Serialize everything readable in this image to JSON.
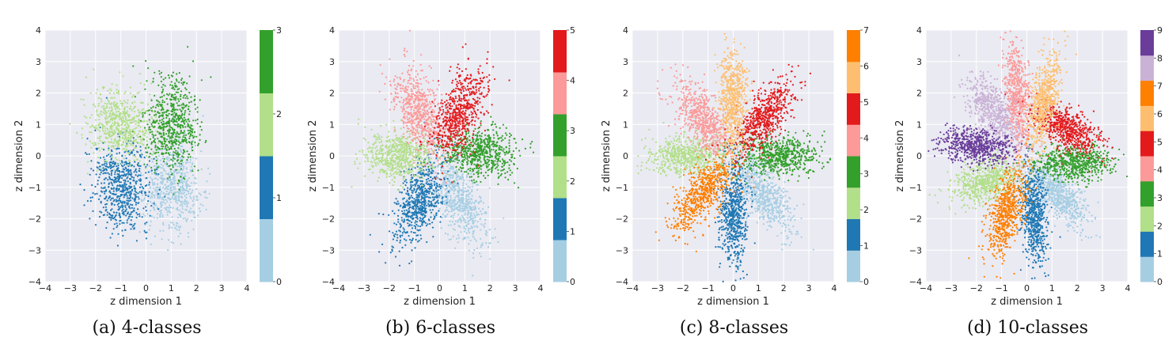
{
  "chart_data": [
    {
      "type": "scatter",
      "caption": "(a) 4-classes",
      "xlabel": "z dimension 1",
      "ylabel": "z dimension 2",
      "xlim": [
        -4,
        4
      ],
      "ylim": [
        -4,
        4
      ],
      "xticks": [
        "−4",
        "−3",
        "−2",
        "−1",
        "0",
        "1",
        "2",
        "3",
        "4"
      ],
      "yticks": [
        "−4",
        "−3",
        "−2",
        "−1",
        "0",
        "1",
        "2",
        "3",
        "4"
      ],
      "grid": true,
      "colorbar": {
        "labels": [
          "0",
          "1",
          "2",
          "3"
        ]
      },
      "series": [
        {
          "label": "0",
          "color": "#a6cee3",
          "center": [
            1.0,
            -1.0
          ],
          "spread": [
            0.55,
            0.7
          ],
          "angle_deg": 0
        },
        {
          "label": "1",
          "color": "#1f78b4",
          "center": [
            -1.0,
            -1.0
          ],
          "spread": [
            0.55,
            0.7
          ],
          "angle_deg": 0
        },
        {
          "label": "2",
          "color": "#b2df8a",
          "center": [
            -1.0,
            1.0
          ],
          "spread": [
            0.65,
            0.55
          ],
          "angle_deg": 0
        },
        {
          "label": "3",
          "color": "#33a02c",
          "center": [
            1.0,
            1.0
          ],
          "spread": [
            0.5,
            0.75
          ],
          "angle_deg": 0
        }
      ]
    },
    {
      "type": "scatter",
      "caption": "(b) 6-classes",
      "xlabel": "z dimension 1",
      "ylabel": "z dimension 2",
      "xlim": [
        -4,
        4
      ],
      "ylim": [
        -4,
        4
      ],
      "xticks": [
        "−4",
        "−3",
        "−2",
        "−1",
        "0",
        "1",
        "2",
        "3",
        "4"
      ],
      "yticks": [
        "−4",
        "−3",
        "−2",
        "−1",
        "0",
        "1",
        "2",
        "3",
        "4"
      ],
      "grid": true,
      "colorbar": {
        "labels": [
          "0",
          "1",
          "2",
          "3",
          "4",
          "5"
        ]
      },
      "series": [
        {
          "label": "0",
          "color": "#a6cee3",
          "center": [
            0.8,
            -1.4
          ],
          "spread": [
            0.4,
            0.75
          ],
          "angle_deg": 30
        },
        {
          "label": "1",
          "color": "#1f78b4",
          "center": [
            -0.8,
            -1.4
          ],
          "spread": [
            0.4,
            0.75
          ],
          "angle_deg": -30
        },
        {
          "label": "2",
          "color": "#b2df8a",
          "center": [
            -1.6,
            0.0
          ],
          "spread": [
            0.7,
            0.38
          ],
          "angle_deg": 0
        },
        {
          "label": "3",
          "color": "#33a02c",
          "center": [
            1.6,
            0.1
          ],
          "spread": [
            0.7,
            0.38
          ],
          "angle_deg": 0
        },
        {
          "label": "4",
          "color": "#fb9a99",
          "center": [
            -0.8,
            1.4
          ],
          "spread": [
            0.4,
            0.75
          ],
          "angle_deg": 30
        },
        {
          "label": "5",
          "color": "#e31a1c",
          "center": [
            0.8,
            1.4
          ],
          "spread": [
            0.4,
            0.75
          ],
          "angle_deg": -30
        }
      ]
    },
    {
      "type": "scatter",
      "caption": "(c) 8-classes",
      "xlabel": "z dimension 1",
      "ylabel": "z dimension 2",
      "xlim": [
        -4,
        4
      ],
      "ylim": [
        -4,
        4
      ],
      "xticks": [
        "−4",
        "−3",
        "−2",
        "−1",
        "0",
        "1",
        "2",
        "3",
        "4"
      ],
      "yticks": [
        "−4",
        "−3",
        "−2",
        "−1",
        "0",
        "1",
        "2",
        "3",
        "4"
      ],
      "grid": true,
      "colorbar": {
        "labels": [
          "0",
          "1",
          "2",
          "3",
          "4",
          "5",
          "6",
          "7"
        ]
      },
      "series": [
        {
          "label": "0",
          "color": "#a6cee3",
          "center": [
            1.2,
            -1.2
          ],
          "spread": [
            0.35,
            0.75
          ],
          "angle_deg": 45
        },
        {
          "label": "1",
          "color": "#1f78b4",
          "center": [
            0.0,
            -1.8
          ],
          "spread": [
            0.28,
            0.8
          ],
          "angle_deg": 0
        },
        {
          "label": "2",
          "color": "#b2df8a",
          "center": [
            -1.8,
            0.0
          ],
          "spread": [
            0.8,
            0.3
          ],
          "angle_deg": 0
        },
        {
          "label": "3",
          "color": "#33a02c",
          "center": [
            1.8,
            0.0
          ],
          "spread": [
            0.8,
            0.3
          ],
          "angle_deg": 0
        },
        {
          "label": "4",
          "color": "#fb9a99",
          "center": [
            -1.2,
            1.2
          ],
          "spread": [
            0.35,
            0.75
          ],
          "angle_deg": 45
        },
        {
          "label": "5",
          "color": "#e31a1c",
          "center": [
            1.2,
            1.2
          ],
          "spread": [
            0.35,
            0.75
          ],
          "angle_deg": -45
        },
        {
          "label": "6",
          "color": "#fdbf6f",
          "center": [
            0.0,
            1.8
          ],
          "spread": [
            0.28,
            0.8
          ],
          "angle_deg": 0
        },
        {
          "label": "7",
          "color": "#ff7f00",
          "center": [
            -1.2,
            -1.2
          ],
          "spread": [
            0.35,
            0.75
          ],
          "angle_deg": -45
        }
      ]
    },
    {
      "type": "scatter",
      "caption": "(d) 10-classes",
      "xlabel": "z dimension 1",
      "ylabel": "z dimension 2",
      "xlim": [
        -4,
        4
      ],
      "ylim": [
        -4,
        4
      ],
      "xticks": [
        "−4",
        "−3",
        "−2",
        "−1",
        "0",
        "1",
        "2",
        "3",
        "4"
      ],
      "yticks": [
        "−4",
        "−3",
        "−2",
        "−1",
        "0",
        "1",
        "2",
        "3",
        "4"
      ],
      "grid": true,
      "colorbar": {
        "labels": [
          "0",
          "1",
          "2",
          "3",
          "4",
          "5",
          "6",
          "7",
          "8",
          "9"
        ]
      },
      "series": [
        {
          "label": "0",
          "color": "#a6cee3",
          "center": [
            1.3,
            -1.2
          ],
          "spread": [
            0.3,
            0.7
          ],
          "angle_deg": 50
        },
        {
          "label": "1",
          "color": "#1f78b4",
          "center": [
            0.3,
            -1.9
          ],
          "spread": [
            0.25,
            0.8
          ],
          "angle_deg": 5
        },
        {
          "label": "2",
          "color": "#b2df8a",
          "center": [
            -1.6,
            -0.8
          ],
          "spread": [
            0.7,
            0.32
          ],
          "angle_deg": 15
        },
        {
          "label": "3",
          "color": "#33a02c",
          "center": [
            1.9,
            -0.2
          ],
          "spread": [
            0.75,
            0.28
          ],
          "angle_deg": 0
        },
        {
          "label": "4",
          "color": "#fb9a99",
          "center": [
            -0.4,
            1.9
          ],
          "spread": [
            0.25,
            0.8
          ],
          "angle_deg": 5
        },
        {
          "label": "5",
          "color": "#e31a1c",
          "center": [
            1.6,
            0.9
          ],
          "spread": [
            0.7,
            0.3
          ],
          "angle_deg": -25
        },
        {
          "label": "6",
          "color": "#fdbf6f",
          "center": [
            0.7,
            1.8
          ],
          "spread": [
            0.27,
            0.75
          ],
          "angle_deg": -15
        },
        {
          "label": "7",
          "color": "#ff7f00",
          "center": [
            -0.8,
            -1.8
          ],
          "spread": [
            0.3,
            0.75
          ],
          "angle_deg": -20
        },
        {
          "label": "8",
          "color": "#cab2d6",
          "center": [
            -1.3,
            1.4
          ],
          "spread": [
            0.35,
            0.7
          ],
          "angle_deg": 40
        },
        {
          "label": "9",
          "color": "#6a3d9a",
          "center": [
            -2.0,
            0.3
          ],
          "spread": [
            0.75,
            0.28
          ],
          "angle_deg": -5
        }
      ]
    }
  ]
}
